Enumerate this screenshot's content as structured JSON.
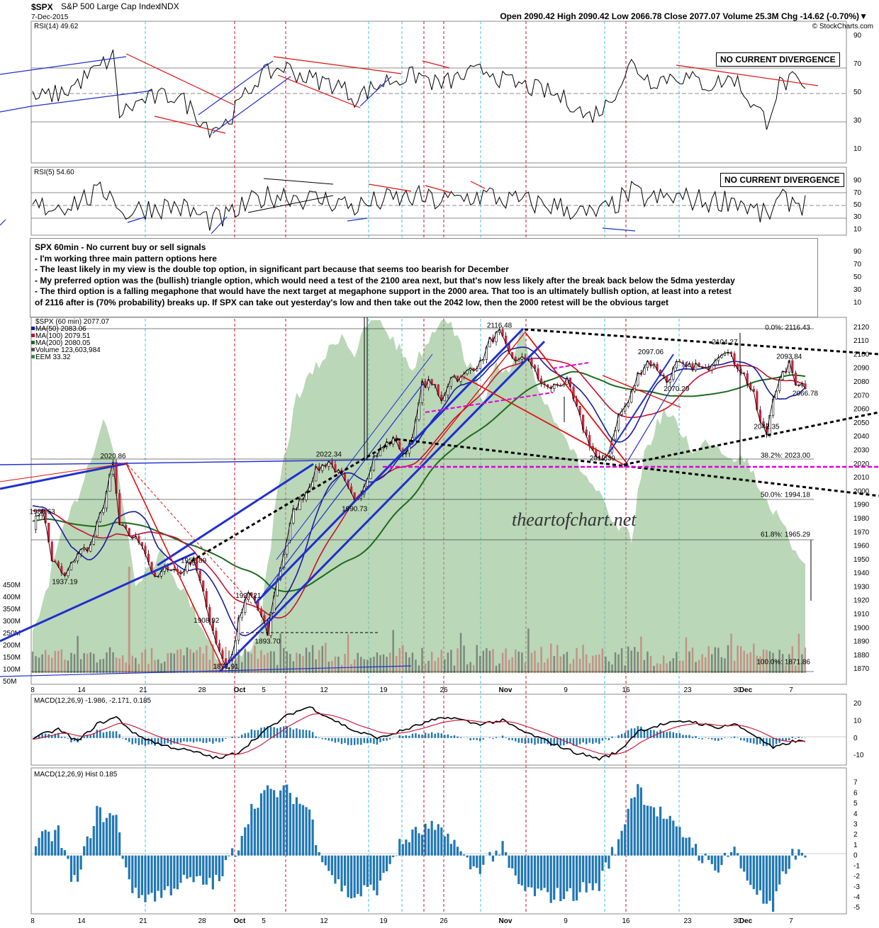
{
  "header": {
    "symbol": "$SPX",
    "name": "S&P 500 Large Cap Index",
    "exchange": "INDX",
    "date": "7-Dec-2015",
    "ohlc": "Open 2090.42  High 2090.42  Low 2066.78  Close 2077.07  Volume 25.3M  Chg -14.62 (-0.70%)",
    "change_sign": "▼",
    "credit": "© StockCharts.com"
  },
  "rsi14": {
    "label": "RSI(14) 49.62",
    "ticks": [
      "90",
      "70",
      "50",
      "30",
      "10"
    ],
    "callout": "NO CURRENT DIVERGENCE"
  },
  "rsi5": {
    "label": "RSI(5) 54.60",
    "ticks": [
      "90",
      "70",
      "50",
      "30",
      "10"
    ],
    "callout": "NO CURRENT DIVERGENCE"
  },
  "notes": {
    "lines": [
      "SPX 60min - No current buy or sell signals",
      "- I'm working three main pattern options here",
      "- The least likely in my view is the double top option, in significant part because that seems too bearish for December",
      "- My preferred option was the (bullish) triangle option, which would need a test of the 2100 area next, but that's now less likely after the break back below the 5dma yesterday",
      "- The third option is a falling megaphone that would have the next target at megaphone support in the 2000 area. That too is an ultimately bullish option, at least into a retest",
      "of 2116 after is (70% probability) breaks up. If SPX can take out yesterday's low and then take out the 2042 low, then the 2000 retest will be the obvious target"
    ],
    "hidden_ticks": [
      "90",
      "70",
      "50",
      "30",
      "10"
    ]
  },
  "price_panel": {
    "legend": [
      {
        "text": "$SPX (60 min) 2077.07",
        "color": "#000000"
      },
      {
        "text": "MA(50) 2083.06",
        "color": "#1a1aa0"
      },
      {
        "text": "MA(100) 2079.51",
        "color": "#c8102e"
      },
      {
        "text": "MA(200) 2080.05",
        "color": "#1d6b1d"
      },
      {
        "text": "Volume 123,603,984",
        "color": "#555555"
      },
      {
        "text": "EEM 33.32",
        "color": "#3a8a3a"
      }
    ],
    "y_ticks": [
      "2120",
      "2110",
      "2100",
      "2090",
      "2080",
      "2070",
      "2060",
      "2050",
      "2040",
      "2030",
      "2020",
      "2010",
      "2000",
      "1990",
      "1980",
      "1970",
      "1960",
      "1950",
      "1940",
      "1930",
      "1920",
      "1910",
      "1900",
      "1890",
      "1880",
      "1870"
    ],
    "volume_ticks": [
      "450M",
      "400M",
      "350M",
      "300M",
      "250M",
      "200M",
      "150M",
      "100M",
      "50M"
    ],
    "fib_labels": [
      "0.0%: 2116.43",
      "38.2%: 2023.00",
      "50.0%: 1994.18",
      "61.8%: 1965.29",
      "100.0%: 1871.86"
    ],
    "watermark": "theartofchart.net",
    "price_labels": [
      "2116.48",
      "2104.27",
      "2097.06",
      "2093.84",
      "2070.29",
      "2066.78",
      "2042.35",
      "2019.39",
      "2022.34",
      "2020.86",
      "1990.73",
      "1988.63",
      "1952.89",
      "1937.19",
      "1927.21",
      "1908.92",
      "1893.70",
      "1871.91"
    ]
  },
  "x_labels": [
    "8",
    "14",
    "21",
    "28",
    "Oct",
    "5",
    "12",
    "19",
    "26",
    "Nov",
    "9",
    "16",
    "23",
    "30",
    "Dec",
    "7"
  ],
  "macd": {
    "label": "MACD(12,26,9) -1.986, -2.171, 0.185",
    "label_colors": {
      "macd": "#000000",
      "signal": "#c8102e",
      "hist": "#1f77b4"
    },
    "ticks": [
      "20",
      "10",
      "0",
      "-10"
    ]
  },
  "macd_hist": {
    "label": "MACD(12,26,9) Hist 0.185",
    "ticks": [
      "7",
      "6",
      "5",
      "4",
      "3",
      "2",
      "1",
      "0",
      "-1",
      "-2",
      "-3",
      "-4",
      "-5"
    ]
  },
  "chart_data": {
    "type": "candlestick",
    "title": "$SPX S&P 500 Large Cap Index INDX (60 min)",
    "x_labels": [
      "8",
      "14",
      "21",
      "28",
      "Oct",
      "5",
      "12",
      "19",
      "26",
      "Nov",
      "9",
      "16",
      "23",
      "30",
      "Dec",
      "7"
    ],
    "price_range": [
      1865,
      2125
    ],
    "price_path": [
      [
        0,
        1975
      ],
      [
        3,
        1988
      ],
      [
        6,
        1950
      ],
      [
        10,
        1937
      ],
      [
        14,
        1955
      ],
      [
        18,
        1960
      ],
      [
        22,
        1990
      ],
      [
        25,
        2020
      ],
      [
        27,
        1975
      ],
      [
        30,
        1968
      ],
      [
        34,
        1962
      ],
      [
        38,
        1935
      ],
      [
        42,
        1945
      ],
      [
        46,
        1940
      ],
      [
        50,
        1952
      ],
      [
        54,
        1915
      ],
      [
        57,
        1890
      ],
      [
        60,
        1872
      ],
      [
        62,
        1880
      ],
      [
        64,
        1905
      ],
      [
        67,
        1925
      ],
      [
        69,
        1920
      ],
      [
        71,
        1908
      ],
      [
        73,
        1895
      ],
      [
        75,
        1925
      ],
      [
        78,
        1955
      ],
      [
        81,
        1985
      ],
      [
        85,
        2000
      ],
      [
        88,
        2015
      ],
      [
        92,
        2022
      ],
      [
        96,
        2010
      ],
      [
        100,
        1992
      ],
      [
        103,
        2005
      ],
      [
        106,
        2025
      ],
      [
        110,
        2035
      ],
      [
        113,
        2038
      ],
      [
        115,
        2025
      ],
      [
        117,
        2035
      ],
      [
        119,
        2050
      ],
      [
        121,
        2078
      ],
      [
        124,
        2080
      ],
      [
        127,
        2065
      ],
      [
        130,
        2085
      ],
      [
        133,
        2082
      ],
      [
        136,
        2090
      ],
      [
        139,
        2093
      ],
      [
        142,
        2110
      ],
      [
        145,
        2116
      ],
      [
        148,
        2100
      ],
      [
        151,
        2095
      ],
      [
        154,
        2098
      ],
      [
        157,
        2082
      ],
      [
        160,
        2075
      ],
      [
        163,
        2078
      ],
      [
        166,
        2080
      ],
      [
        169,
        2060
      ],
      [
        172,
        2040
      ],
      [
        175,
        2025
      ],
      [
        177,
        2020
      ],
      [
        179,
        2030
      ],
      [
        182,
        2055
      ],
      [
        185,
        2065
      ],
      [
        188,
        2085
      ],
      [
        191,
        2095
      ],
      [
        194,
        2090
      ],
      [
        197,
        2080
      ],
      [
        200,
        2093
      ],
      [
        203,
        2090
      ],
      [
        206,
        2092
      ],
      [
        209,
        2088
      ],
      [
        212,
        2098
      ],
      [
        215,
        2104
      ],
      [
        218,
        2095
      ],
      [
        221,
        2085
      ],
      [
        224,
        2070
      ],
      [
        226,
        2050
      ],
      [
        228,
        2042
      ],
      [
        230,
        2070
      ],
      [
        233,
        2085
      ],
      [
        235,
        2093
      ],
      [
        237,
        2080
      ],
      [
        240,
        2077
      ]
    ],
    "moving_averages": [
      {
        "name": "MA(50)",
        "value": 2083.06
      },
      {
        "name": "MA(100)",
        "value": 2079.51
      },
      {
        "name": "MA(200)",
        "value": 2080.05
      }
    ],
    "fib_levels": [
      {
        "label": "0.0%",
        "value": 2116.43
      },
      {
        "label": "38.2%",
        "value": 2023.0
      },
      {
        "label": "50.0%",
        "value": 1994.18
      },
      {
        "label": "61.8%",
        "value": 1965.29
      },
      {
        "label": "100.0%",
        "value": 1871.86
      }
    ],
    "rsi14": 49.62,
    "rsi5": 54.6,
    "macd": {
      "macd": -1.986,
      "signal": -2.171,
      "hist": 0.185
    }
  }
}
